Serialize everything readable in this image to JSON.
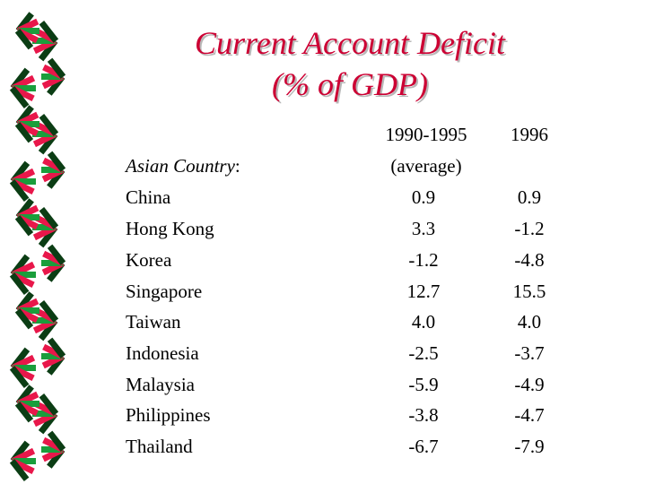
{
  "title": {
    "line1": "Current Account Deficit",
    "line2": "(% of GDP)"
  },
  "table": {
    "country_header": "Asian Country",
    "country_header_suffix": ":",
    "period_header_line1": "1990-1995",
    "period_header_line2": "(average)",
    "year_header": "1996",
    "rows": [
      {
        "country": "China",
        "avg_1990_1995": "0.9",
        "y1996": "0.9"
      },
      {
        "country": "Hong Kong",
        "avg_1990_1995": "3.3",
        "y1996": "-1.2"
      },
      {
        "country": "Korea",
        "avg_1990_1995": "-1.2",
        "y1996": "-4.8"
      },
      {
        "country": "Singapore",
        "avg_1990_1995": "12.7",
        "y1996": "15.5"
      },
      {
        "country": "Taiwan",
        "avg_1990_1995": "4.0",
        "y1996": "4.0"
      },
      {
        "country": "Indonesia",
        "avg_1990_1995": "-2.5",
        "y1996": "-3.7"
      },
      {
        "country": "Malaysia",
        "avg_1990_1995": "-5.9",
        "y1996": "-4.9"
      },
      {
        "country": "Philippines",
        "avg_1990_1995": "-3.8",
        "y1996": "-4.7"
      },
      {
        "country": "Thailand",
        "avg_1990_1995": "-6.7",
        "y1996": "-7.9"
      }
    ]
  },
  "colors": {
    "title": "#cc0033",
    "border_red": "#e8174a",
    "border_green": "#1a9e3c",
    "border_dark": "#0b3d14",
    "text": "#000000"
  }
}
